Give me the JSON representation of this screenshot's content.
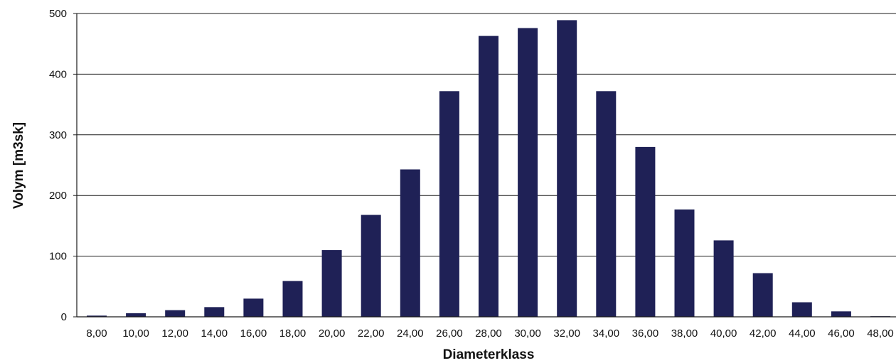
{
  "chart_data": {
    "type": "bar",
    "title": "",
    "xlabel": "Diameterklass",
    "ylabel": "Volym [m3sk]",
    "categories": [
      "8,00",
      "10,00",
      "12,00",
      "14,00",
      "16,00",
      "18,00",
      "20,00",
      "22,00",
      "24,00",
      "26,00",
      "28,00",
      "30,00",
      "32,00",
      "34,00",
      "36,00",
      "38,00",
      "40,00",
      "42,00",
      "44,00",
      "46,00",
      "48,00"
    ],
    "values": [
      2,
      6,
      11,
      16,
      30,
      59,
      110,
      168,
      243,
      372,
      463,
      476,
      489,
      372,
      280,
      177,
      126,
      72,
      24,
      9,
      1
    ],
    "ylim": [
      0,
      500
    ],
    "yticks": [
      0,
      100,
      200,
      300,
      400,
      500
    ],
    "grid": true,
    "legend": "none",
    "colors": {
      "bar": "#1f2156",
      "grid": "#1a1a1a",
      "text": "#111111"
    }
  }
}
